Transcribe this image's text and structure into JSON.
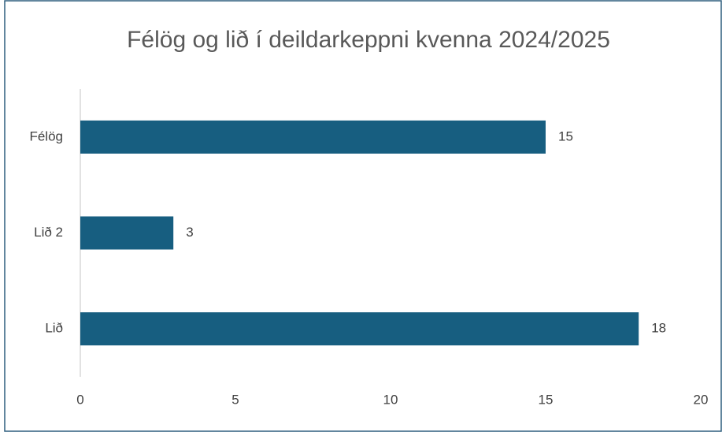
{
  "chart_data": {
    "type": "bar",
    "orientation": "horizontal",
    "title": "Félög og lið í deildarkeppni kvenna 2024/2025",
    "categories": [
      "Félög",
      "Lið 2",
      "Lið"
    ],
    "values": [
      15,
      3,
      18
    ],
    "color": "#175e80",
    "xlim": [
      0,
      20
    ],
    "xticks": [
      0,
      5,
      10,
      15,
      20
    ],
    "grid": false
  }
}
